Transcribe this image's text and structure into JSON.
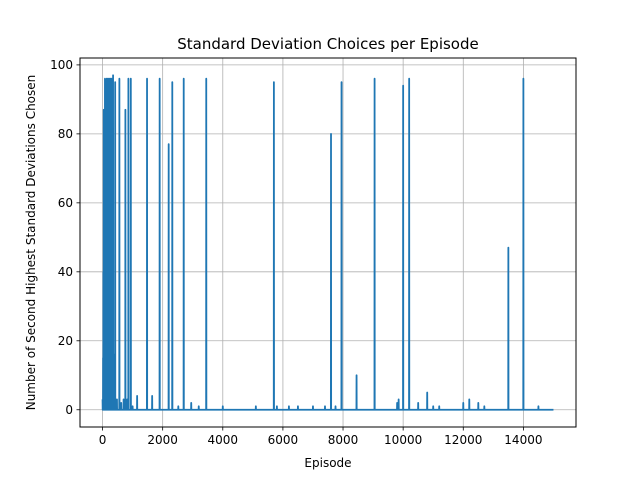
{
  "chart_data": {
    "type": "line",
    "title": "Standard Deviation Choices per Episode",
    "xlabel": "Episode",
    "ylabel": "Number of Second Highest Standard Deviations Chosen",
    "xlim": [
      -750,
      15750
    ],
    "ylim": [
      -5,
      102
    ],
    "xticks": [
      0,
      2000,
      4000,
      6000,
      8000,
      10000,
      12000,
      14000
    ],
    "yticks": [
      0,
      20,
      40,
      60,
      80,
      100
    ],
    "grid": true,
    "series": [
      {
        "color": "#1f77b4",
        "spikes": [
          [
            20,
            15
          ],
          [
            30,
            40
          ],
          [
            40,
            87
          ],
          [
            60,
            30
          ],
          [
            80,
            96
          ],
          [
            100,
            60
          ],
          [
            120,
            90
          ],
          [
            140,
            96
          ],
          [
            160,
            45
          ],
          [
            180,
            96
          ],
          [
            200,
            75
          ],
          [
            220,
            96
          ],
          [
            240,
            50
          ],
          [
            260,
            96
          ],
          [
            280,
            80
          ],
          [
            300,
            96
          ],
          [
            320,
            40
          ],
          [
            350,
            97
          ],
          [
            380,
            16
          ],
          [
            420,
            95
          ],
          [
            480,
            3
          ],
          [
            560,
            96
          ],
          [
            620,
            2
          ],
          [
            700,
            3
          ],
          [
            760,
            87
          ],
          [
            820,
            3
          ],
          [
            860,
            96
          ],
          [
            940,
            96
          ],
          [
            1000,
            1
          ],
          [
            1150,
            4
          ],
          [
            1480,
            96
          ],
          [
            1650,
            4
          ],
          [
            1900,
            96
          ],
          [
            2200,
            77
          ],
          [
            2320,
            95
          ],
          [
            2520,
            1
          ],
          [
            2700,
            96
          ],
          [
            2950,
            2
          ],
          [
            3200,
            1
          ],
          [
            3450,
            96
          ],
          [
            4000,
            1
          ],
          [
            5100,
            1
          ],
          [
            5700,
            95
          ],
          [
            5800,
            1
          ],
          [
            6200,
            1
          ],
          [
            6500,
            1
          ],
          [
            7000,
            1
          ],
          [
            7400,
            1
          ],
          [
            7600,
            80
          ],
          [
            7750,
            1
          ],
          [
            7950,
            95
          ],
          [
            8450,
            10
          ],
          [
            9050,
            96
          ],
          [
            9800,
            2
          ],
          [
            9850,
            3
          ],
          [
            10000,
            94
          ],
          [
            10200,
            96
          ],
          [
            10500,
            2
          ],
          [
            10800,
            5
          ],
          [
            11000,
            1
          ],
          [
            11200,
            1
          ],
          [
            12000,
            2
          ],
          [
            12200,
            3
          ],
          [
            12500,
            2
          ],
          [
            12700,
            1
          ],
          [
            13500,
            47
          ],
          [
            14000,
            96
          ],
          [
            14500,
            1
          ]
        ],
        "x_end": 15000
      }
    ]
  }
}
